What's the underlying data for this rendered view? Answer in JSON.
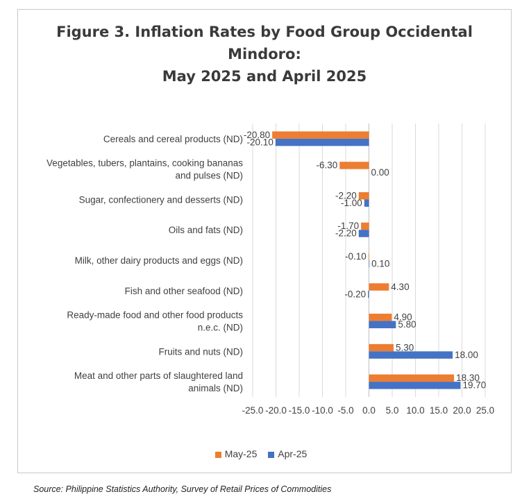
{
  "figure": {
    "title_lines": [
      "Figure 3. Inflation Rates by Food Group Occidental",
      "Mindoro:",
      "May 2025 and April 2025"
    ],
    "source": "Source: Philippine Statistics Authority, Survey of Retail Prices of Commodities"
  },
  "chart_data": {
    "type": "bar",
    "orientation": "horizontal",
    "title": "Figure 3. Inflation Rates by Food Group Occidental Mindoro: May 2025 and April 2025",
    "categories": [
      [
        "Cereals and cereal products (ND)"
      ],
      [
        "Vegetables, tubers, plantains, cooking bananas",
        "and pulses (ND)"
      ],
      [
        "Sugar, confectionery and desserts (ND)"
      ],
      [
        "Oils and fats (ND)"
      ],
      [
        "Milk, other dairy products and eggs (ND)"
      ],
      [
        "Fish and other seafood (ND)"
      ],
      [
        "Ready-made food and other food products",
        "n.e.c. (ND)"
      ],
      [
        "Fruits and nuts (ND)"
      ],
      [
        "Meat and other parts of slaughtered land",
        "animals (ND)"
      ]
    ],
    "series": [
      {
        "name": "May-25",
        "color": "#ED7D31",
        "values": [
          -20.8,
          -6.3,
          -2.2,
          -1.7,
          -0.1,
          4.3,
          4.9,
          5.3,
          18.3
        ],
        "labels": [
          "-20.80",
          "-6.30",
          "-2.20",
          "-1.70",
          "-0.10",
          "4.30",
          "4.90",
          "5.30",
          "18.30"
        ]
      },
      {
        "name": "Apr-25",
        "color": "#4472C4",
        "values": [
          -20.1,
          0.0,
          -1.0,
          -2.2,
          0.1,
          -0.2,
          5.8,
          18.0,
          19.7
        ],
        "labels": [
          "-20.10",
          "0.00",
          "-1.00",
          "-2.20",
          "0.10",
          "-0.20",
          "5.80",
          "18.00",
          "19.70"
        ]
      }
    ],
    "xlim": [
      -25,
      25
    ],
    "xticks": [
      -25,
      -20,
      -15,
      -10,
      -5,
      0,
      5,
      10,
      15,
      20,
      25
    ],
    "xtick_labels": [
      "-25.0",
      "-20.0",
      "-15.0",
      "-10.0",
      "-5.0",
      "0.0",
      "5.0",
      "10.0",
      "15.0",
      "20.0",
      "25.0"
    ],
    "grid": "vertical",
    "legend_position": "bottom"
  }
}
